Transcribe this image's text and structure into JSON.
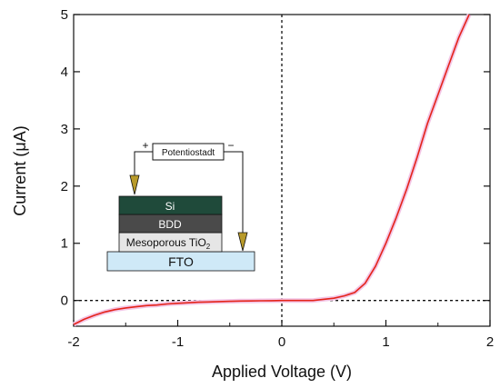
{
  "chart_data": {
    "type": "line",
    "title": "",
    "xlabel": "Applied Voltage (V)",
    "ylabel": "Current (μA)",
    "xlim": [
      -2,
      2
    ],
    "ylim": [
      -0.45,
      5
    ],
    "xticks": [
      -2,
      -1,
      0,
      1,
      2
    ],
    "xtick_labels": [
      "-2",
      "-1",
      "0",
      "1",
      "2"
    ],
    "yticks": [
      0,
      1,
      2,
      3,
      4,
      5
    ],
    "ytick_labels": [
      "0",
      "1",
      "2",
      "3",
      "4",
      "5"
    ],
    "grid": false,
    "reference_lines": {
      "y_zero": "dotted",
      "x_zero": "dotted"
    },
    "series": [
      {
        "color": "#e4241a",
        "x": [
          -2.0,
          -1.9,
          -1.8,
          -1.7,
          -1.6,
          -1.5,
          -1.4,
          -1.3,
          -1.2,
          -1.1,
          -1.0,
          -0.9,
          -0.8,
          -0.7,
          -0.6,
          -0.5,
          -0.4,
          -0.3,
          -0.2,
          -0.1,
          0.0,
          0.1,
          0.2,
          0.3,
          0.4,
          0.5,
          0.6,
          0.7,
          0.8,
          0.9,
          1.0,
          1.1,
          1.2,
          1.3,
          1.4,
          1.5,
          1.6,
          1.7,
          1.75,
          1.8
        ],
        "y": [
          -0.42,
          -0.33,
          -0.26,
          -0.2,
          -0.16,
          -0.13,
          -0.11,
          -0.09,
          -0.08,
          -0.06,
          -0.05,
          -0.04,
          -0.03,
          -0.025,
          -0.02,
          -0.015,
          -0.01,
          -0.008,
          -0.005,
          -0.003,
          0.0,
          0.0,
          0.0,
          0.0,
          0.02,
          0.04,
          0.08,
          0.14,
          0.3,
          0.6,
          1.0,
          1.45,
          1.95,
          2.5,
          3.1,
          3.6,
          4.1,
          4.6,
          4.8,
          5.0
        ]
      }
    ]
  },
  "inset": {
    "potentiostat_label": "Potentiostadt",
    "plus_sign": "+",
    "minus_sign": "−",
    "layer_si": "Si",
    "layer_bdd": "BDD",
    "layer_tio2_main": "Mesoporous TiO",
    "layer_tio2_sub": "2",
    "layer_fto": "FTO",
    "colors": {
      "si": "#1f4a3a",
      "bdd": "#4a4a4a",
      "tio2": "#e6e6e6",
      "fto": "#cfe9f7",
      "arrow": "#b89a2a"
    }
  }
}
